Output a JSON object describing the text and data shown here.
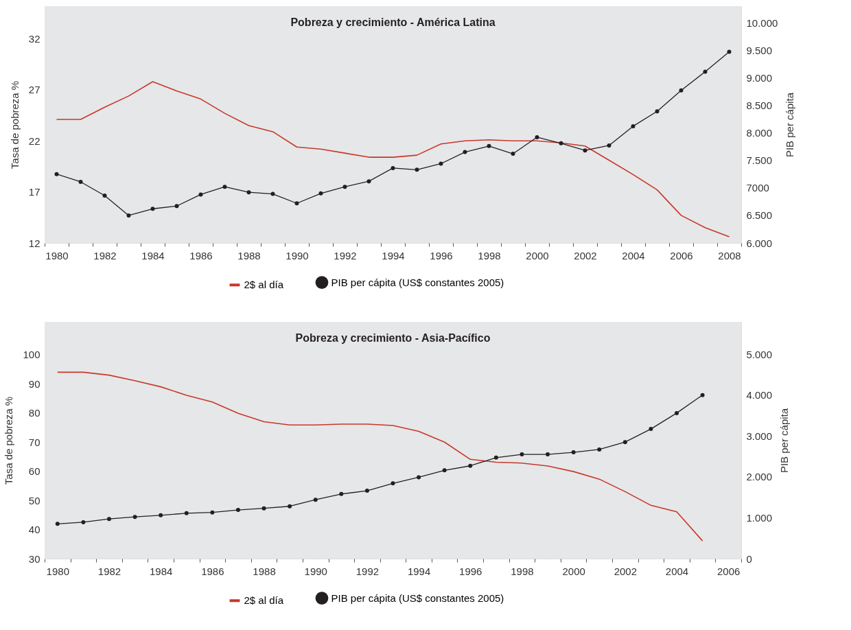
{
  "chart_data": [
    {
      "type": "line",
      "title": "Pobreza y crecimiento - América Latina",
      "ylabel": "Tasa de pobreza %",
      "y2label": "PIB per cápita",
      "legend": "bottom",
      "categories": [
        "1980",
        null,
        "1982",
        null,
        "1984",
        null,
        "1986",
        null,
        "1988",
        null,
        "1990",
        null,
        "1992",
        null,
        "1994",
        null,
        "1996",
        null,
        "1998",
        null,
        "2000",
        null,
        "2002",
        null,
        "2004",
        null,
        "2006",
        null,
        "2008"
      ],
      "ylim": [
        12,
        35.2
      ],
      "yticks": [
        12,
        17,
        22,
        27,
        32
      ],
      "y2lim": [
        6000,
        10300
      ],
      "y2ticks": [
        {
          "value": 6000,
          "label": "6.000"
        },
        {
          "value": 6500,
          "label": "6.500"
        },
        {
          "value": 7000,
          "label": "7000"
        },
        {
          "value": 7500,
          "label": "7.500"
        },
        {
          "value": 8000,
          "label": "8.000"
        },
        {
          "value": 8500,
          "label": "8.500"
        },
        {
          "value": 9000,
          "label": "9.000"
        },
        {
          "value": 9500,
          "label": "9.500"
        },
        {
          "value": 10000,
          "label": "10.000"
        }
      ],
      "series": [
        {
          "name": "2$ al día",
          "color": "#c8372a",
          "marker": "none",
          "values": [
            24.1,
            24.1,
            25.3,
            26.4,
            27.8,
            26.9,
            26.1,
            24.7,
            23.5,
            22.9,
            21.4,
            21.2,
            20.8,
            20.4,
            20.4,
            20.6,
            21.7,
            22.0,
            22.1,
            22.0,
            22.0,
            21.8,
            21.5,
            20.1,
            18.7,
            17.2,
            14.7,
            13.5,
            12.6
          ]
        },
        {
          "name": "PIB per cápita (US$ constantes 2005)",
          "color": "#231f20",
          "marker": "circle",
          "axis": "y2",
          "values": [
            7250,
            7110,
            6860,
            6500,
            6620,
            6670,
            6880,
            7020,
            6920,
            6890,
            6720,
            6900,
            7020,
            7120,
            7360,
            7330,
            7440,
            7650,
            7760,
            7620,
            7920,
            7810,
            7680,
            7770,
            8120,
            8390,
            8770,
            9110,
            9470
          ]
        }
      ]
    },
    {
      "type": "line",
      "title": "Pobreza y crecimiento - Asia-Pacífico",
      "ylabel": "Tasa de pobreza %",
      "y2label": "PIB per cápita",
      "legend": "bottom",
      "categories": [
        "1980",
        null,
        "1982",
        null,
        "1984",
        null,
        "1986",
        null,
        "1988",
        null,
        "1990",
        null,
        "1992",
        null,
        "1994",
        null,
        "1996",
        null,
        "1998",
        null,
        "2000",
        null,
        "2002",
        null,
        "2004",
        null,
        "2006"
      ],
      "ylim": [
        30,
        111.3
      ],
      "yticks": [
        30,
        40,
        50,
        60,
        70,
        80,
        90,
        100
      ],
      "y2lim": [
        0,
        5790
      ],
      "y2ticks": [
        {
          "value": 0,
          "label": "0"
        },
        {
          "value": 1000,
          "label": "1.000"
        },
        {
          "value": 2000,
          "label": "2.000"
        },
        {
          "value": 3000,
          "label": "3.000"
        },
        {
          "value": 4000,
          "label": "4.000"
        },
        {
          "value": 5000,
          "label": "5.000"
        }
      ],
      "series": [
        {
          "name": "2$ al día",
          "color": "#c8372a",
          "marker": "none",
          "values": [
            94.0,
            94.0,
            93.0,
            91.1,
            89.0,
            86.1,
            83.8,
            79.9,
            77.0,
            75.9,
            75.9,
            76.2,
            76.2,
            75.7,
            73.7,
            70.0,
            64.1,
            63.1,
            62.8,
            61.8,
            59.9,
            57.3,
            53.0,
            48.3,
            46.1,
            36.1,
            null
          ]
        },
        {
          "name": "PIB per cápita (US$ constantes 2005)",
          "color": "#231f20",
          "marker": "circle",
          "axis": "y2",
          "values": [
            850,
            890,
            970,
            1020,
            1060,
            1110,
            1130,
            1190,
            1230,
            1280,
            1440,
            1580,
            1660,
            1840,
            1990,
            2160,
            2270,
            2470,
            2550,
            2550,
            2600,
            2670,
            2850,
            3170,
            3560,
            4000,
            null
          ]
        }
      ]
    }
  ]
}
